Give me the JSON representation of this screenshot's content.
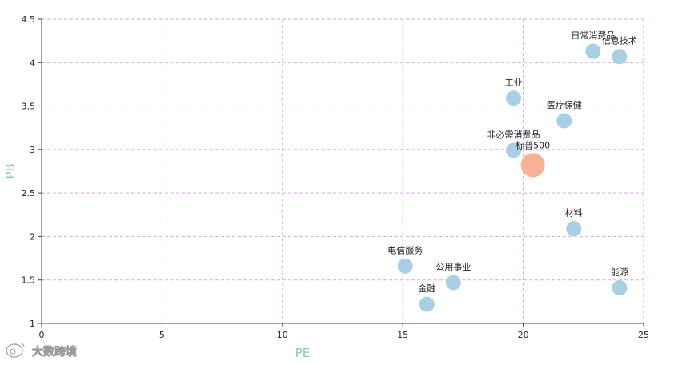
{
  "chart_data": {
    "type": "scatter",
    "xlabel": "PE",
    "ylabel": "PB",
    "xlim": [
      0,
      25
    ],
    "ylim": [
      1,
      4.5
    ],
    "xticks": [
      0,
      5,
      10,
      15,
      20,
      25
    ],
    "yticks": [
      1,
      1.5,
      2,
      2.5,
      3,
      3.5,
      4,
      4.5
    ],
    "ytick_labels": [
      "1",
      "1.5",
      "2",
      "2.5",
      "3",
      "3.5",
      "4",
      "4.5"
    ],
    "grid": true,
    "points": [
      {
        "label": "日常消费品",
        "x": 22.9,
        "y": 4.13,
        "highlight": false
      },
      {
        "label": "信息技术",
        "x": 24.0,
        "y": 4.07,
        "highlight": false
      },
      {
        "label": "工业",
        "x": 19.6,
        "y": 3.59,
        "highlight": false
      },
      {
        "label": "医疗保健",
        "x": 21.7,
        "y": 3.33,
        "highlight": false
      },
      {
        "label": "非必需消费品",
        "x": 19.6,
        "y": 2.99,
        "highlight": false
      },
      {
        "label": "标普500",
        "x": 20.4,
        "y": 2.82,
        "highlight": true
      },
      {
        "label": "材料",
        "x": 22.1,
        "y": 2.09,
        "highlight": false
      },
      {
        "label": "电信服务",
        "x": 15.1,
        "y": 1.66,
        "highlight": false
      },
      {
        "label": "公用事业",
        "x": 17.1,
        "y": 1.47,
        "highlight": false
      },
      {
        "label": "能源",
        "x": 24.0,
        "y": 1.41,
        "highlight": false
      },
      {
        "label": "金融",
        "x": 16.0,
        "y": 1.22,
        "highlight": false
      }
    ]
  },
  "colors": {
    "point": "#a9cfe6",
    "highlight_point": "#f7b195",
    "grid": "#d9a6e0",
    "axis_title": "#8cc4bf",
    "axis_line": "#444444"
  },
  "watermark": {
    "text": "大数跨境",
    "icon": "weibo-logo"
  }
}
